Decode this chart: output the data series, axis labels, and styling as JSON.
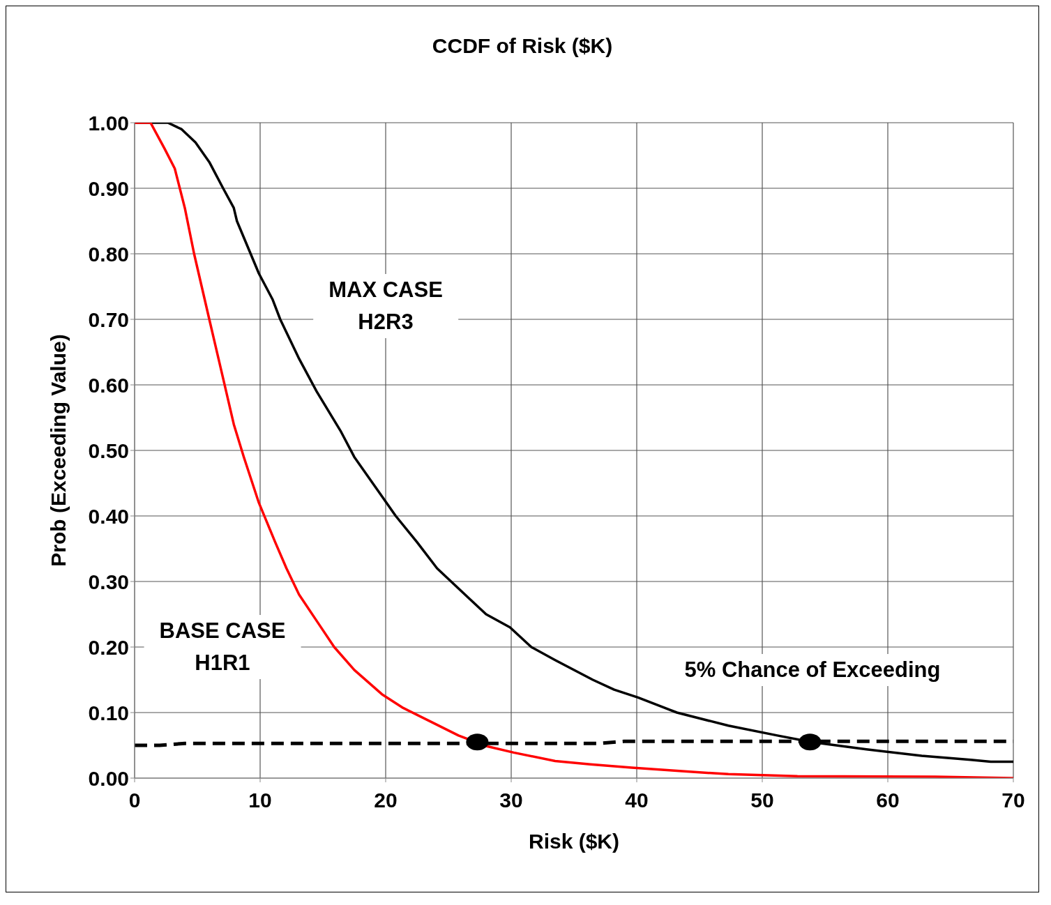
{
  "chart_data": {
    "type": "line",
    "title": "CCDF of Risk ($K)",
    "xlabel": "Risk ($K)",
    "ylabel": "Prob (Exceeding Value)",
    "xlim": [
      0,
      70
    ],
    "xticks": [
      0,
      10,
      20,
      30,
      40,
      50,
      60,
      70
    ],
    "ylim": [
      0,
      1
    ],
    "yticks": [
      {
        "value": 0,
        "label": "0.00"
      },
      {
        "value": 0.1,
        "label": "0.10"
      },
      {
        "value": 0.2,
        "label": "0.20"
      },
      {
        "value": 0.3,
        "label": "0.30"
      },
      {
        "value": 0.4,
        "label": "0.40"
      },
      {
        "value": 0.5,
        "label": "0.50"
      },
      {
        "value": 0.6,
        "label": "0.60"
      },
      {
        "value": 0.7,
        "label": "0.70"
      },
      {
        "value": 0.8,
        "label": "0.80"
      },
      {
        "value": 0.9,
        "label": "0.90"
      },
      {
        "value": 1,
        "label": "1.00"
      }
    ],
    "grid": true,
    "marker": "none",
    "line_style": "solid",
    "series": [
      {
        "color": "#000000",
        "x": [
          0,
          2.65,
          3.75,
          4.85,
          5.95,
          7.05,
          7.9,
          8.15,
          9.9,
          11,
          11.6,
          13.1,
          14.5,
          16.4,
          17.5,
          19.7,
          20.8,
          22.5,
          24.1,
          26.6,
          28,
          29.9,
          31.6,
          33.5,
          36.5,
          38.2,
          40.1,
          43.2,
          47.3,
          51.2,
          53.9,
          58.3,
          62.7,
          66.6,
          68.2,
          70
        ],
        "values": [
          1,
          1,
          0.99,
          0.97,
          0.94,
          0.9,
          0.87,
          0.85,
          0.77,
          0.73,
          0.7,
          0.64,
          0.59,
          0.53,
          0.49,
          0.43,
          0.4,
          0.36,
          0.32,
          0.275,
          0.25,
          0.23,
          0.2,
          0.18,
          0.15,
          0.135,
          0.123,
          0.1,
          0.08,
          0.065,
          0.055,
          0.044,
          0.034,
          0.028,
          0.025,
          0.025
        ]
      },
      {
        "color": "#ff0000",
        "x": [
          0,
          1.27,
          2.4,
          3.2,
          4,
          4.74,
          5.95,
          7.05,
          7.9,
          8.7,
          9.9,
          11.2,
          12.1,
          13.1,
          14.5,
          15.9,
          17.5,
          19.7,
          21.4,
          23.6,
          25.8,
          28,
          30.2,
          33.5,
          36.3,
          39.6,
          44,
          47.3,
          52.8,
          63.8,
          70
        ],
        "values": [
          1,
          1,
          0.96,
          0.93,
          0.87,
          0.8,
          0.7,
          0.61,
          0.54,
          0.49,
          0.42,
          0.36,
          0.32,
          0.28,
          0.24,
          0.2,
          0.165,
          0.128,
          0.107,
          0.086,
          0.065,
          0.049,
          0.039,
          0.026,
          0.021,
          0.016,
          0.01,
          0.006,
          0.003,
          0.002,
          0
        ]
      },
      {
        "color": "#000000",
        "line_style": "dashed",
        "x": [
          0,
          2,
          4,
          37,
          39,
          70
        ],
        "values": [
          0.05,
          0.05,
          0.053,
          0.053,
          0.056,
          0.056
        ]
      },
      {
        "type": "scatter",
        "marker": "circle",
        "color": "#000000",
        "x": [
          27.3,
          53.8
        ],
        "values": [
          0.055,
          0.055
        ]
      }
    ],
    "annotations": [
      "MAX CASE\nH2R3",
      "BASE CASE\nH1R1",
      "5% Chance of Exceeding"
    ]
  }
}
